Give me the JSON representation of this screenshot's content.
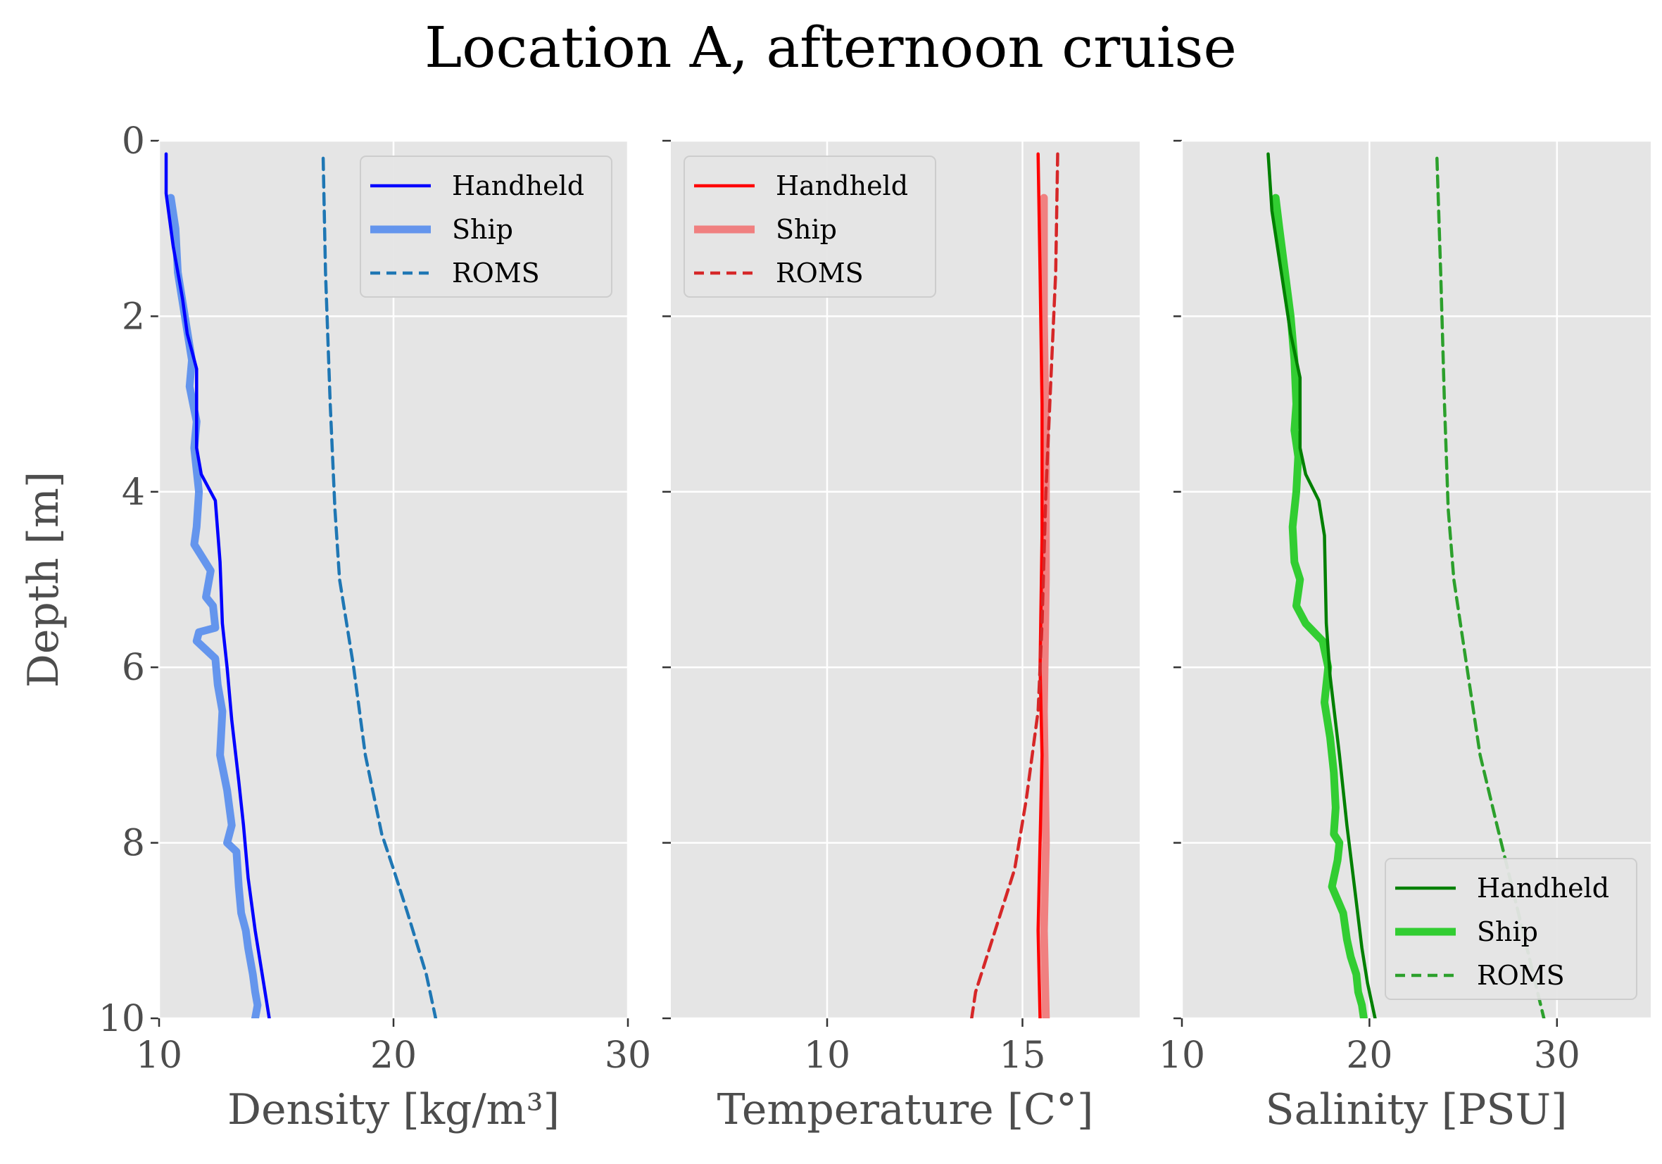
{
  "title": "Location A, afternoon cruise",
  "chart_data": [
    {
      "type": "line",
      "xlabel": "Density [kg/m³]",
      "ylabel": "Depth [m]",
      "xlim": [
        10,
        30
      ],
      "ylim": [
        10,
        0
      ],
      "xticks": [
        "10",
        "20",
        "30"
      ],
      "yticks": [
        "0",
        "2",
        "4",
        "6",
        "8",
        "10"
      ],
      "grid": true,
      "legend_position": "top-right",
      "series": [
        {
          "name": "Handheld",
          "color": "#0000ff",
          "style": "solid",
          "x": [
            10.3,
            10.3,
            10.6,
            11.0,
            11.2,
            11.6,
            11.6,
            11.8,
            12.4,
            12.6,
            12.7,
            12.9,
            13.1,
            13.4,
            13.6,
            13.8,
            14.1,
            14.4,
            14.7
          ],
          "y": [
            0.15,
            0.6,
            1.2,
            1.8,
            2.2,
            2.6,
            3.5,
            3.8,
            4.1,
            4.8,
            5.5,
            6.0,
            6.6,
            7.3,
            7.8,
            8.4,
            9.0,
            9.5,
            10.0
          ]
        },
        {
          "name": "Ship",
          "color": "#6495ed",
          "style": "thick",
          "x": [
            10.5,
            10.7,
            10.8,
            11.1,
            11.4,
            11.3,
            11.6,
            11.5,
            11.7,
            11.6,
            11.5,
            12.2,
            12.0,
            12.3,
            12.4,
            11.7,
            11.6,
            12.4,
            12.5,
            12.7,
            12.6,
            12.9,
            13.1,
            12.9,
            13.3,
            13.4,
            13.5,
            13.7,
            13.8,
            14.0,
            14.1,
            14.2,
            14.1
          ],
          "y": [
            0.65,
            1.0,
            1.5,
            2.0,
            2.5,
            2.8,
            3.2,
            3.5,
            4.0,
            4.4,
            4.6,
            4.9,
            5.2,
            5.3,
            5.55,
            5.6,
            5.7,
            5.9,
            6.2,
            6.5,
            7.0,
            7.4,
            7.8,
            8.0,
            8.1,
            8.5,
            8.8,
            9.0,
            9.2,
            9.5,
            9.7,
            9.85,
            10.0
          ]
        },
        {
          "name": "ROMS",
          "color": "#1f77b4",
          "style": "dashed",
          "x": [
            17.0,
            17.1,
            17.3,
            17.5,
            17.7,
            18.3,
            18.8,
            19.5,
            20.0,
            20.6,
            21.4,
            21.8
          ],
          "y": [
            0.2,
            1.5,
            3.0,
            4.2,
            5.0,
            6.0,
            7.0,
            7.9,
            8.3,
            8.8,
            9.5,
            10.0
          ]
        }
      ]
    },
    {
      "type": "line",
      "xlabel": "Temperature [C°]",
      "ylabel": "",
      "xlim": [
        6,
        18
      ],
      "ylim": [
        10,
        0
      ],
      "xticks": [
        "10",
        "15"
      ],
      "yticks": [],
      "grid": true,
      "legend_position": "top-left",
      "series": [
        {
          "name": "Handheld",
          "color": "#ff0000",
          "style": "solid",
          "x": [
            15.4,
            15.45,
            15.5,
            15.5,
            15.45,
            15.5,
            15.45,
            15.4,
            15.45
          ],
          "y": [
            0.15,
            1.5,
            3.0,
            4.5,
            6.0,
            7.0,
            8.0,
            9.0,
            10.0
          ]
        },
        {
          "name": "Ship",
          "color": "#f08080",
          "style": "thick",
          "x": [
            15.55,
            15.55,
            15.6,
            15.6,
            15.55,
            15.6,
            15.55,
            15.6
          ],
          "y": [
            0.65,
            2.0,
            3.5,
            5.0,
            6.5,
            8.0,
            9.0,
            10.0
          ]
        },
        {
          "name": "ROMS",
          "color": "#d62728",
          "style": "dashed",
          "x": [
            15.9,
            15.85,
            15.7,
            15.6,
            15.5,
            15.4,
            15.1,
            14.8,
            14.3,
            13.8,
            13.7
          ],
          "y": [
            0.15,
            1.5,
            3.0,
            4.0,
            5.5,
            6.5,
            7.5,
            8.3,
            9.0,
            9.7,
            10.0
          ]
        }
      ]
    },
    {
      "type": "line",
      "xlabel": "Salinity [PSU]",
      "ylabel": "",
      "xlim": [
        10,
        35
      ],
      "ylim": [
        10,
        0
      ],
      "xticks": [
        "10",
        "20",
        "30"
      ],
      "yticks": [],
      "grid": true,
      "legend_position": "bottom-right",
      "series": [
        {
          "name": "Handheld",
          "color": "#008000",
          "style": "solid",
          "x": [
            14.6,
            14.8,
            15.3,
            15.8,
            16.3,
            16.3,
            16.6,
            17.3,
            17.6,
            17.7,
            17.9,
            18.4,
            18.8,
            19.2,
            19.6,
            19.9,
            20.3
          ],
          "y": [
            0.15,
            0.8,
            1.5,
            2.2,
            2.7,
            3.5,
            3.8,
            4.1,
            4.5,
            5.5,
            6.1,
            7.0,
            7.8,
            8.5,
            9.2,
            9.6,
            10.0
          ]
        },
        {
          "name": "Ship",
          "color": "#32cd32",
          "style": "thick",
          "x": [
            15.0,
            15.2,
            15.5,
            15.8,
            16.0,
            16.1,
            16.0,
            16.2,
            16.1,
            15.9,
            16.0,
            16.3,
            16.1,
            16.6,
            17.5,
            17.8,
            17.6,
            17.9,
            18.1,
            18.2,
            18.1,
            18.4,
            18.3,
            18.0,
            18.6,
            18.8,
            19.0,
            19.3,
            19.4,
            19.6,
            19.7
          ],
          "y": [
            0.65,
            1.0,
            1.5,
            2.0,
            2.5,
            3.0,
            3.3,
            3.6,
            4.0,
            4.4,
            4.8,
            5.0,
            5.3,
            5.5,
            5.7,
            6.0,
            6.4,
            6.8,
            7.2,
            7.6,
            7.9,
            8.0,
            8.2,
            8.5,
            8.8,
            9.1,
            9.3,
            9.5,
            9.7,
            9.85,
            10.0
          ]
        },
        {
          "name": "ROMS",
          "color": "#2ca02c",
          "style": "dashed",
          "x": [
            23.6,
            23.8,
            24.0,
            24.2,
            24.5,
            25.2,
            25.9,
            26.8,
            27.6,
            28.4,
            29.3
          ],
          "y": [
            0.2,
            1.5,
            3.0,
            4.2,
            5.0,
            6.0,
            7.0,
            7.8,
            8.5,
            9.2,
            10.0
          ]
        }
      ]
    }
  ]
}
